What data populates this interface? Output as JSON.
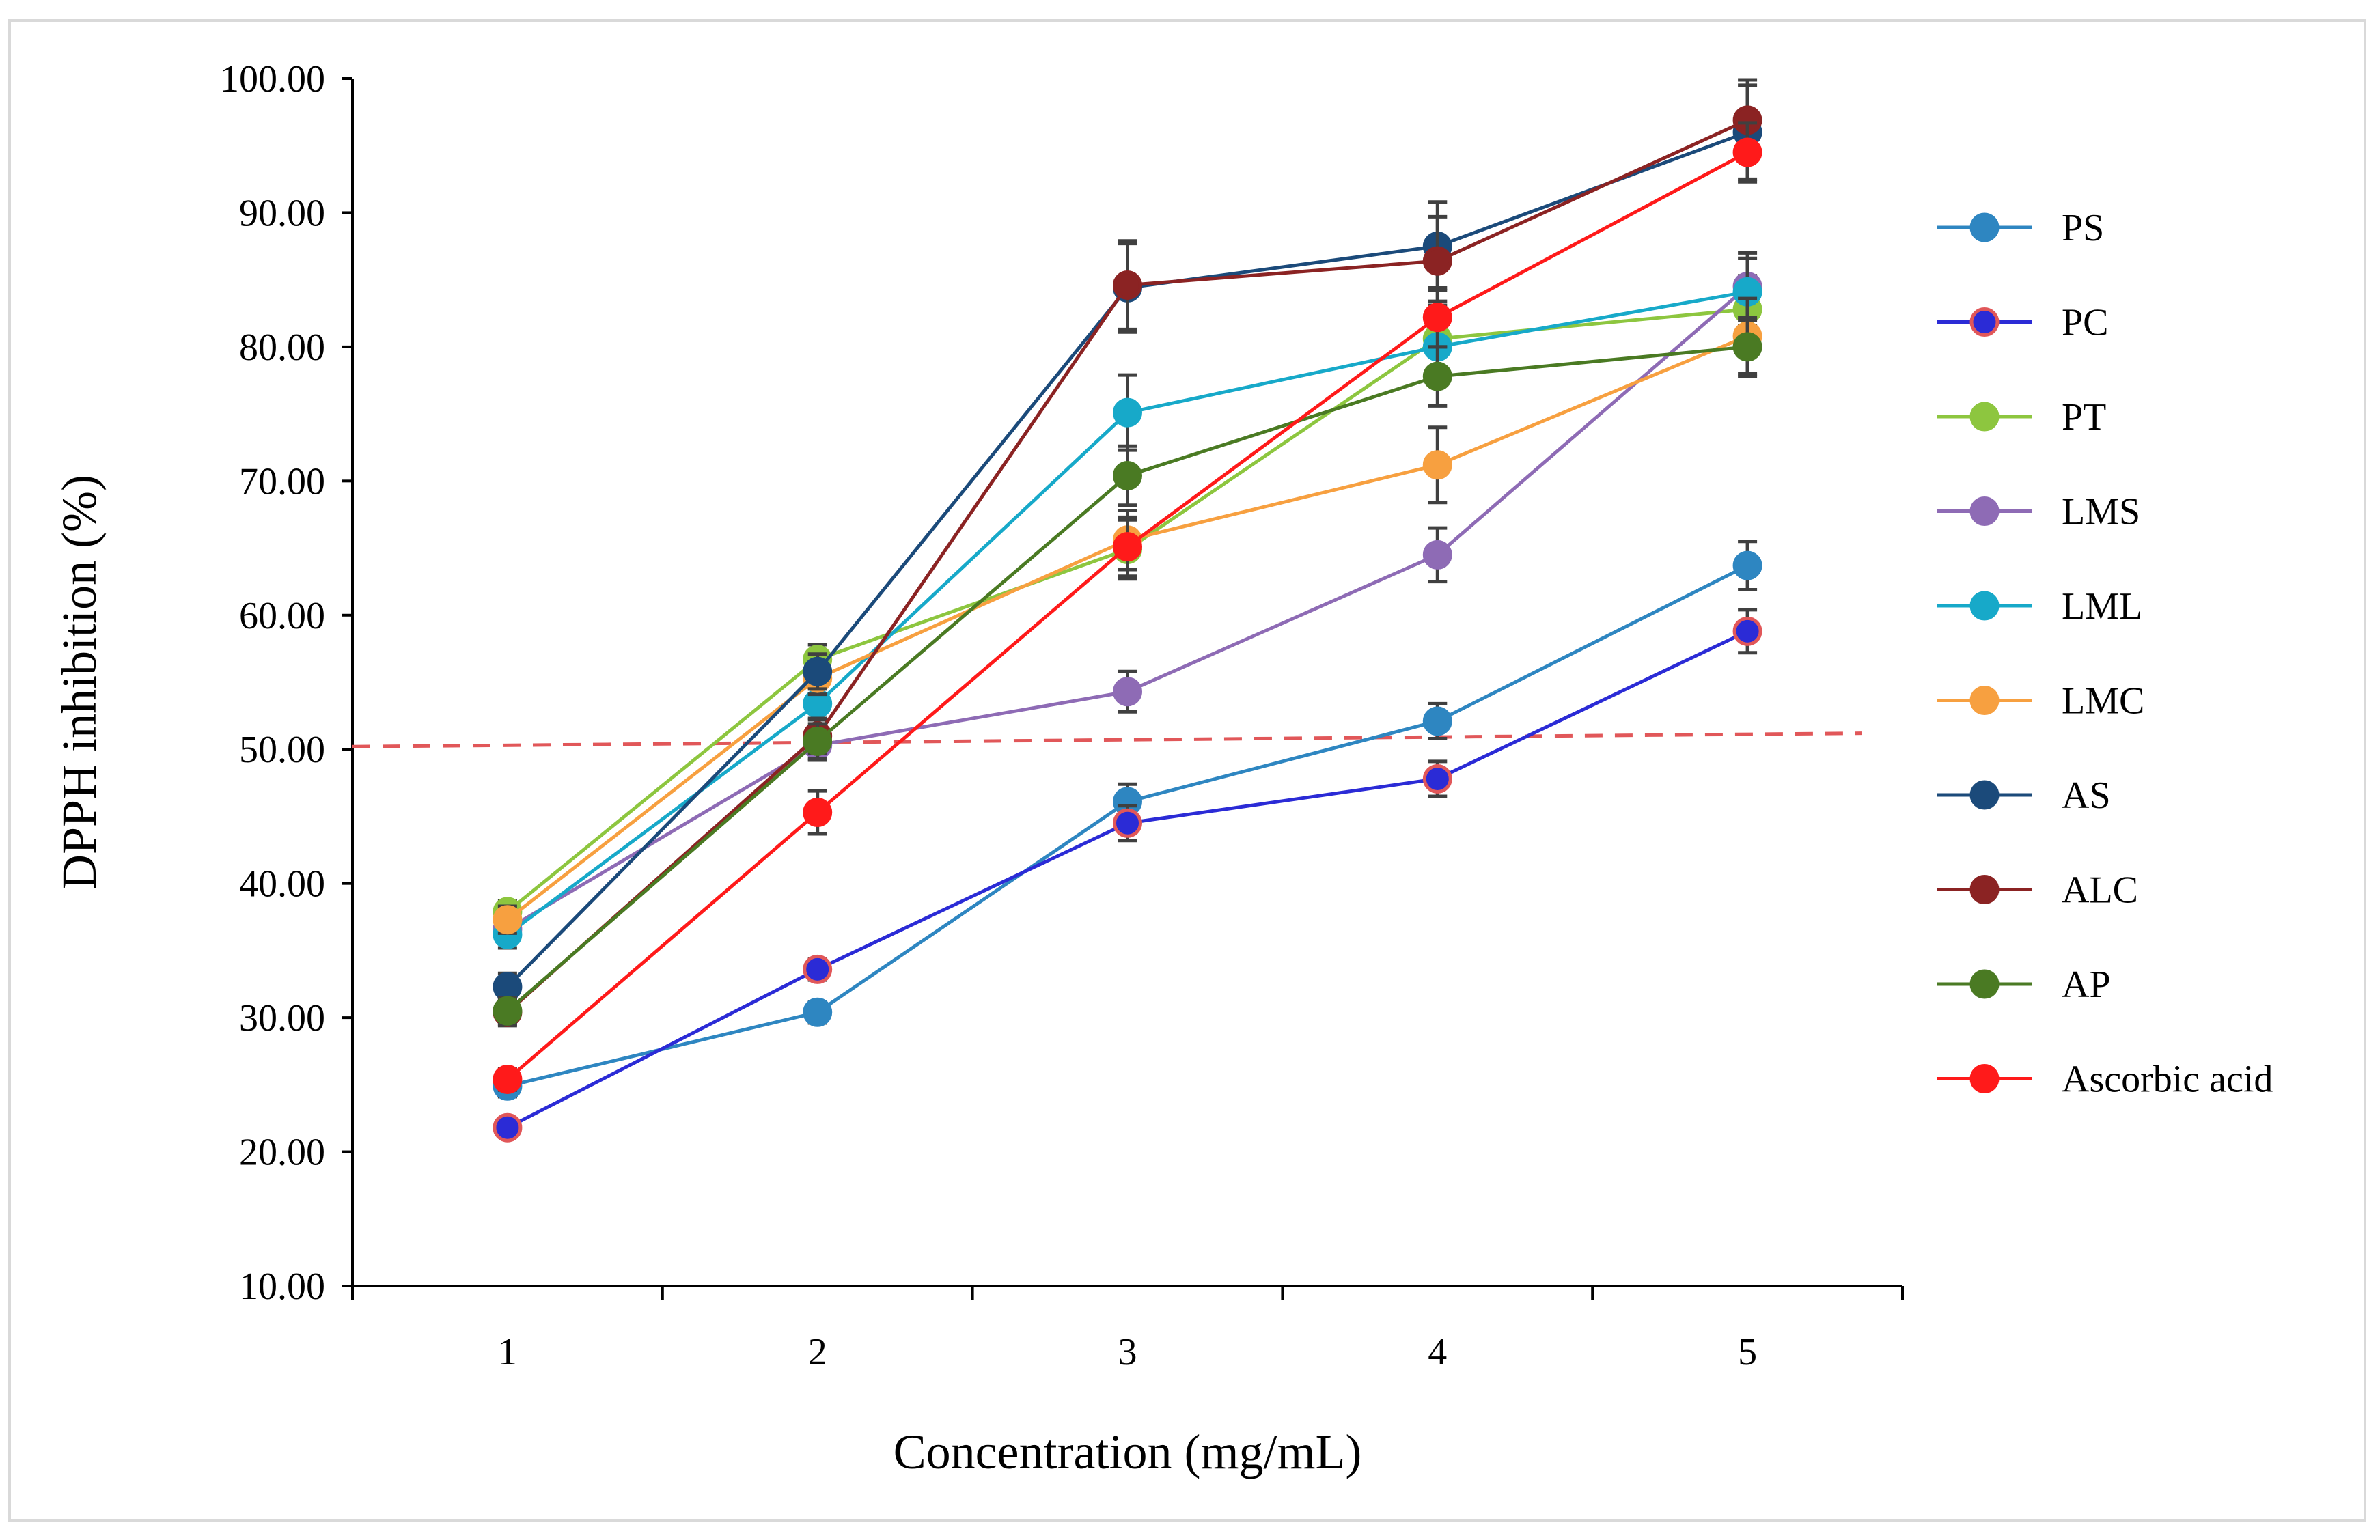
{
  "chart_data": {
    "type": "line",
    "title": "",
    "xlabel": "Concentration (mg/mL)",
    "ylabel": "DPPH inhibition (%)",
    "x": [
      1,
      2,
      3,
      4,
      5
    ],
    "x_tick_labels": [
      "1",
      "2",
      "3",
      "4",
      "5"
    ],
    "ylim": [
      10,
      100
    ],
    "y_tick_labels": [
      "10.00",
      "20.00",
      "30.00",
      "40.00",
      "50.00",
      "60.00",
      "70.00",
      "80.00",
      "90.00",
      "100.00"
    ],
    "legend_position": "right",
    "reference_line": {
      "style": "dashed",
      "color": "#e15759",
      "y_start": 50.2,
      "y_end": 51.2
    },
    "series": [
      {
        "name": "PS",
        "line_color": "#2e86c1",
        "marker_fill": "#2e86c1",
        "marker_edge": "#2e86c1",
        "values": [
          24.9,
          30.4,
          46.1,
          52.1,
          63.7
        ],
        "errors": [
          0.8,
          0.8,
          1.3,
          1.3,
          1.8
        ]
      },
      {
        "name": "PC",
        "line_color": "#2b2bd6",
        "marker_fill": "#2b2bd6",
        "marker_edge": "#e15759",
        "values": [
          21.8,
          33.6,
          44.5,
          47.8,
          58.8
        ],
        "errors": [
          0.6,
          0.8,
          1.3,
          1.3,
          1.6
        ]
      },
      {
        "name": "PT",
        "line_color": "#8dc63f",
        "marker_fill": "#8dc63f",
        "marker_edge": "#8dc63f",
        "values": [
          37.9,
          56.7,
          64.9,
          80.6,
          82.8
        ],
        "errors": [
          0.8,
          1.1,
          2.2,
          2.8,
          2.5
        ]
      },
      {
        "name": "LMS",
        "line_color": "#8e6bb5",
        "marker_fill": "#8e6bb5",
        "marker_edge": "#8e6bb5",
        "values": [
          36.6,
          50.3,
          54.3,
          64.5,
          84.5
        ],
        "errors": [
          1.0,
          1.1,
          1.5,
          2.0,
          2.5
        ]
      },
      {
        "name": "LML",
        "line_color": "#17a9c9",
        "marker_fill": "#17a9c9",
        "marker_edge": "#17a9c9",
        "values": [
          36.2,
          53.4,
          75.1,
          80.0,
          84.1
        ],
        "errors": [
          1.0,
          1.2,
          2.8,
          2.5,
          2.5
        ]
      },
      {
        "name": "LMC",
        "line_color": "#f7a040",
        "marker_fill": "#f7a040",
        "marker_edge": "#f7a040",
        "values": [
          37.3,
          55.3,
          65.6,
          71.2,
          80.8
        ],
        "errors": [
          1.0,
          1.2,
          2.2,
          2.8,
          2.8
        ]
      },
      {
        "name": "AS",
        "line_color": "#1b4a7a",
        "marker_fill": "#1b4a7a",
        "marker_edge": "#1b4a7a",
        "values": [
          32.3,
          55.8,
          84.4,
          87.5,
          96.0
        ],
        "errors": [
          1.0,
          1.3,
          3.3,
          3.3,
          3.5
        ]
      },
      {
        "name": "ALC",
        "line_color": "#8b2323",
        "marker_fill": "#8b2323",
        "marker_edge": "#8b2323",
        "values": [
          30.4,
          51.0,
          84.6,
          86.4,
          96.9
        ],
        "errors": [
          1.0,
          1.3,
          3.3,
          3.3,
          3.0
        ]
      },
      {
        "name": "AP",
        "line_color": "#4a7a23",
        "marker_fill": "#4a7a23",
        "marker_edge": "#4a7a23",
        "values": [
          30.5,
          50.6,
          70.4,
          77.8,
          80.0
        ],
        "errors": [
          1.0,
          1.3,
          2.2,
          2.2,
          2.2
        ]
      },
      {
        "name": "Ascorbic acid",
        "line_color": "#ff1a1a",
        "marker_fill": "#ff1a1a",
        "marker_edge": "#ff1a1a",
        "values": [
          25.4,
          45.3,
          65.1,
          82.2,
          94.5
        ],
        "errors": [
          0.8,
          1.6,
          2.2,
          2.2,
          2.2
        ]
      }
    ]
  }
}
